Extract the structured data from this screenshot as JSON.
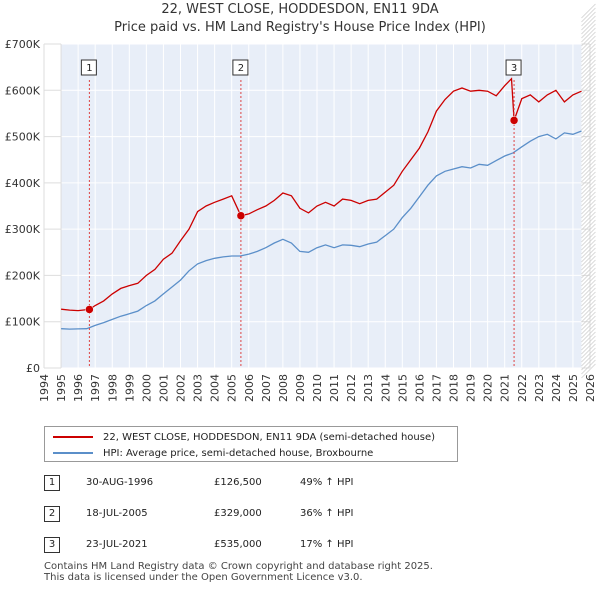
{
  "chart_data": {
    "type": "line",
    "title": "22, WEST CLOSE, HODDESDON, EN11 9DA",
    "subtitle": "Price paid vs. HM Land Registry's House Price Index (HPI)",
    "xlabel": "",
    "ylabel": "",
    "xlim": [
      1994,
      2026
    ],
    "ylim": [
      0,
      700000
    ],
    "x_ticks": [
      1994,
      1995,
      1996,
      1997,
      1998,
      1999,
      2000,
      2001,
      2002,
      2003,
      2004,
      2005,
      2006,
      2007,
      2008,
      2009,
      2010,
      2011,
      2012,
      2013,
      2014,
      2015,
      2016,
      2017,
      2018,
      2019,
      2020,
      2021,
      2022,
      2023,
      2024,
      2025,
      2026
    ],
    "y_ticks": [
      {
        "value": 0,
        "label": "£0"
      },
      {
        "value": 100000,
        "label": "£100K"
      },
      {
        "value": 200000,
        "label": "£200K"
      },
      {
        "value": 300000,
        "label": "£300K"
      },
      {
        "value": 400000,
        "label": "£400K"
      },
      {
        "value": 500000,
        "label": "£500K"
      },
      {
        "value": 600000,
        "label": "£600K"
      },
      {
        "value": 700000,
        "label": "£700K"
      }
    ],
    "grid": true,
    "data_range": [
      1995.0,
      2025.5
    ],
    "series": [
      {
        "name": "22, WEST CLOSE, HODDESDON, EN11 9DA (semi-detached house)",
        "color": "#cc0000",
        "x": [
          1995.0,
          1995.5,
          1996.0,
          1996.66,
          1997.0,
          1997.5,
          1998.0,
          1998.5,
          1999.0,
          1999.5,
          2000.0,
          2000.5,
          2001.0,
          2001.5,
          2002.0,
          2002.5,
          2003.0,
          2003.5,
          2004.0,
          2004.5,
          2005.0,
          2005.54,
          2006.0,
          2006.5,
          2007.0,
          2007.5,
          2008.0,
          2008.5,
          2009.0,
          2009.5,
          2010.0,
          2010.5,
          2011.0,
          2011.5,
          2012.0,
          2012.5,
          2013.0,
          2013.5,
          2014.0,
          2014.5,
          2015.0,
          2015.5,
          2016.0,
          2016.5,
          2017.0,
          2017.5,
          2018.0,
          2018.5,
          2019.0,
          2019.5,
          2020.0,
          2020.5,
          2021.0,
          2021.4,
          2021.55,
          2022.0,
          2022.5,
          2023.0,
          2023.5,
          2024.0,
          2024.5,
          2025.0,
          2025.5
        ],
        "y": [
          127000,
          125000,
          124000,
          126500,
          135000,
          145000,
          160000,
          172000,
          178000,
          183000,
          200000,
          213000,
          235000,
          248000,
          275000,
          300000,
          338000,
          350000,
          358000,
          365000,
          372000,
          329000,
          333000,
          342000,
          350000,
          362000,
          378000,
          372000,
          345000,
          335000,
          350000,
          358000,
          350000,
          365000,
          362000,
          355000,
          362000,
          365000,
          380000,
          395000,
          425000,
          450000,
          475000,
          510000,
          555000,
          580000,
          598000,
          605000,
          598000,
          600000,
          598000,
          588000,
          610000,
          625000,
          535000,
          582000,
          590000,
          575000,
          590000,
          600000,
          575000,
          590000,
          598000
        ]
      },
      {
        "name": "HPI: Average price, semi-detached house, Broxbourne",
        "color": "#5b8fc9",
        "x": [
          1995.0,
          1995.5,
          1996.0,
          1996.5,
          1997.0,
          1997.5,
          1998.0,
          1998.5,
          1999.0,
          1999.5,
          2000.0,
          2000.5,
          2001.0,
          2001.5,
          2002.0,
          2002.5,
          2003.0,
          2003.5,
          2004.0,
          2004.5,
          2005.0,
          2005.5,
          2006.0,
          2006.5,
          2007.0,
          2007.5,
          2008.0,
          2008.5,
          2009.0,
          2009.5,
          2010.0,
          2010.5,
          2011.0,
          2011.5,
          2012.0,
          2012.5,
          2013.0,
          2013.5,
          2014.0,
          2014.5,
          2015.0,
          2015.5,
          2016.0,
          2016.5,
          2017.0,
          2017.5,
          2018.0,
          2018.5,
          2019.0,
          2019.5,
          2020.0,
          2020.5,
          2021.0,
          2021.5,
          2022.0,
          2022.5,
          2023.0,
          2023.5,
          2024.0,
          2024.5,
          2025.0,
          2025.5
        ],
        "y": [
          85000,
          84000,
          84500,
          85000,
          92000,
          98000,
          105000,
          112000,
          117000,
          123000,
          135000,
          145000,
          160000,
          175000,
          190000,
          210000,
          225000,
          232000,
          237000,
          240000,
          242000,
          242000,
          246000,
          252000,
          260000,
          270000,
          278000,
          270000,
          252000,
          250000,
          260000,
          266000,
          260000,
          266000,
          265000,
          262000,
          268000,
          272000,
          286000,
          300000,
          325000,
          345000,
          370000,
          395000,
          415000,
          425000,
          430000,
          435000,
          432000,
          440000,
          438000,
          448000,
          458000,
          465000,
          478000,
          490000,
          500000,
          505000,
          495000,
          508000,
          505000,
          512000
        ]
      }
    ],
    "annotations": [
      {
        "label": "1",
        "x": 1996.66,
        "y": 126500
      },
      {
        "label": "2",
        "x": 2005.54,
        "y": 329000
      },
      {
        "label": "3",
        "x": 2021.55,
        "y": 535000
      }
    ]
  },
  "legend": {
    "entries": [
      {
        "label": "22, WEST CLOSE, HODDESDON, EN11 9DA (semi-detached house)",
        "color": "#cc0000"
      },
      {
        "label": "HPI: Average price, semi-detached house, Broxbourne",
        "color": "#5b8fc9"
      }
    ]
  },
  "transactions": [
    {
      "num": "1",
      "date": "30-AUG-1996",
      "price": "£126,500",
      "hpi": "49% ↑ HPI"
    },
    {
      "num": "2",
      "date": "18-JUL-2005",
      "price": "£329,000",
      "hpi": "36% ↑ HPI"
    },
    {
      "num": "3",
      "date": "23-JUL-2021",
      "price": "£535,000",
      "hpi": "17% ↑ HPI"
    }
  ],
  "footer": {
    "line1": "Contains HM Land Registry data © Crown copyright and database right 2025.",
    "line2": "This data is licensed under the Open Government Licence v3.0."
  }
}
